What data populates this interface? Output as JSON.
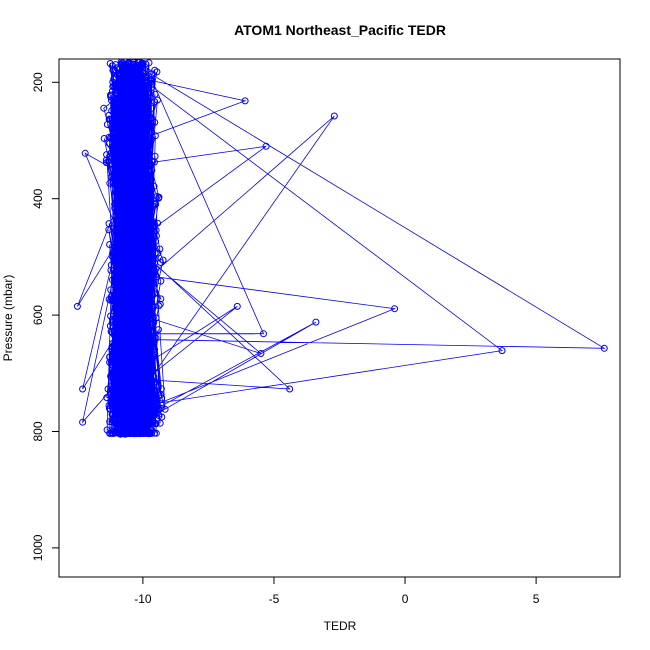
{
  "chart_data": {
    "type": "scatter",
    "title": "ATOM1 Northeast_Pacific TEDR",
    "xlabel": "TEDR",
    "ylabel": "Pressure (mbar)",
    "xlim": [
      -13.2,
      8.2
    ],
    "ylim": [
      1050,
      160
    ],
    "y_reversed": true,
    "x_ticks": [
      -10,
      -5,
      0,
      5
    ],
    "x_tick_labels": [
      "-10",
      "-5",
      "0",
      "5"
    ],
    "y_ticks": [
      200,
      400,
      600,
      800,
      1000
    ],
    "y_tick_labels": [
      "200",
      "400",
      "600",
      "800",
      "1000"
    ],
    "grid": false,
    "legend": "none",
    "marker": "open-circle",
    "connect_points": true,
    "series_color": "#0000ff",
    "outliers": [
      {
        "x": 7.6,
        "y": 657
      },
      {
        "x": 3.7,
        "y": 661
      },
      {
        "x": -0.4,
        "y": 589
      },
      {
        "x": -2.7,
        "y": 258
      },
      {
        "x": -3.4,
        "y": 612
      },
      {
        "x": -4.4,
        "y": 727
      },
      {
        "x": -5.3,
        "y": 310
      },
      {
        "x": -5.4,
        "y": 632
      },
      {
        "x": -5.5,
        "y": 666
      },
      {
        "x": -6.1,
        "y": 232
      },
      {
        "x": -6.4,
        "y": 585
      },
      {
        "x": -12.5,
        "y": 585
      },
      {
        "x": -12.3,
        "y": 784
      },
      {
        "x": -12.3,
        "y": 727
      },
      {
        "x": -12.2,
        "y": 322
      }
    ],
    "bulk_profile": [
      {
        "p": 165,
        "x_min": -12.0,
        "x_max": -7.2,
        "center": -10.4
      },
      {
        "p": 250,
        "x_min": -12.1,
        "x_max": -6.9,
        "center": -10.5
      },
      {
        "p": 350,
        "x_min": -12.0,
        "x_max": -6.9,
        "center": -10.4
      },
      {
        "p": 450,
        "x_min": -12.0,
        "x_max": -6.7,
        "center": -10.3
      },
      {
        "p": 550,
        "x_min": -12.1,
        "x_max": -6.6,
        "center": -10.3
      },
      {
        "p": 650,
        "x_min": -12.0,
        "x_max": -6.8,
        "center": -10.4
      },
      {
        "p": 700,
        "x_min": -12.2,
        "x_max": -6.8,
        "center": -10.5
      },
      {
        "p": 760,
        "x_min": -12.1,
        "x_max": -6.2,
        "center": -10.3
      },
      {
        "p": 805,
        "x_min": -11.9,
        "x_max": -7.3,
        "center": -10.4
      }
    ],
    "dense_levels": [
      727,
      737,
      742,
      748,
      752,
      756,
      760,
      762,
      771,
      783,
      786,
      803
    ],
    "point_count": 4500
  }
}
